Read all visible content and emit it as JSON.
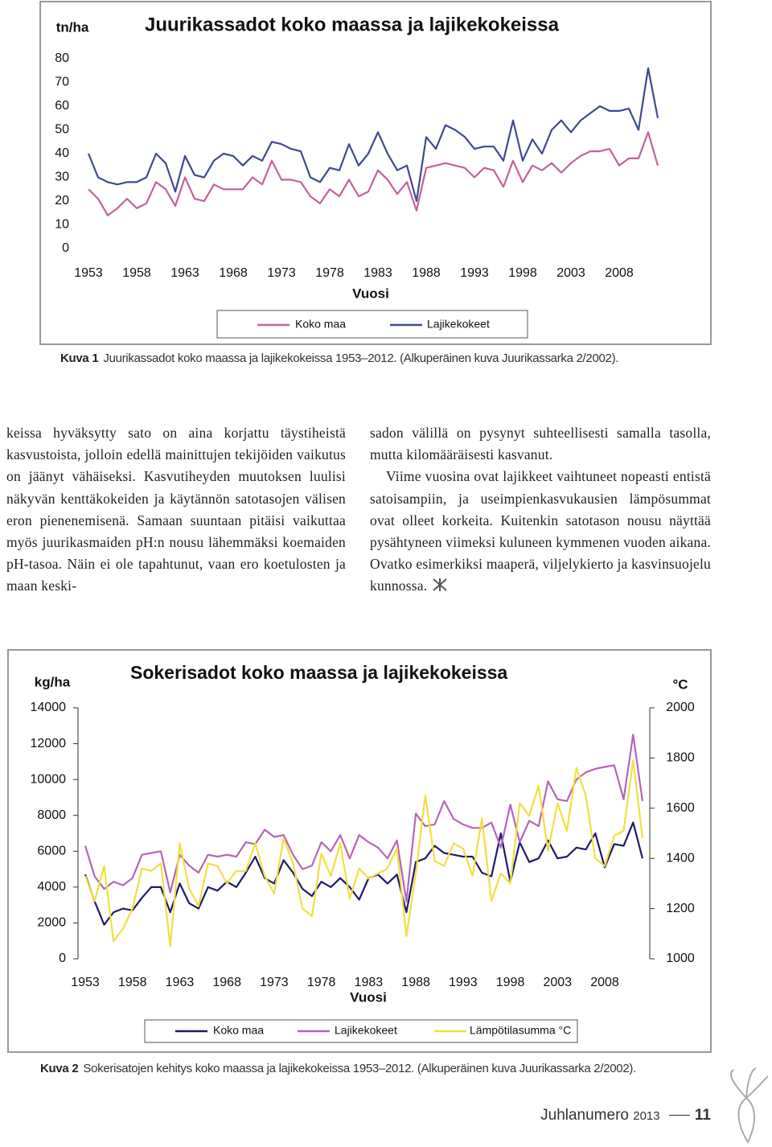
{
  "chart_data": [
    {
      "type": "line",
      "title": "Juurikassadot koko maassa ja lajikekokeissa",
      "y_label": "tn/ha",
      "x_label": "Vuosi",
      "x": [
        1953,
        1954,
        1955,
        1956,
        1957,
        1958,
        1959,
        1960,
        1961,
        1962,
        1963,
        1964,
        1965,
        1966,
        1967,
        1968,
        1969,
        1970,
        1971,
        1972,
        1973,
        1974,
        1975,
        1976,
        1977,
        1978,
        1979,
        1980,
        1981,
        1982,
        1983,
        1984,
        1985,
        1986,
        1987,
        1988,
        1989,
        1990,
        1991,
        1992,
        1993,
        1994,
        1995,
        1996,
        1997,
        1998,
        1999,
        2000,
        2001,
        2002,
        2003,
        2004,
        2005,
        2006,
        2007,
        2008,
        2009,
        2010,
        2011,
        2012
      ],
      "xlim": [
        1953,
        2012
      ],
      "xticks": [
        1953,
        1958,
        1963,
        1968,
        1973,
        1978,
        1983,
        1988,
        1993,
        1998,
        2003,
        2008
      ],
      "ylim": [
        0,
        80
      ],
      "yticks": [
        0,
        10,
        20,
        30,
        40,
        50,
        60,
        70,
        80
      ],
      "series": [
        {
          "name": "Koko maa",
          "color": "#c4619b",
          "values": [
            25,
            21,
            14,
            17,
            21,
            17,
            19,
            28,
            25,
            18,
            30,
            21,
            20,
            27,
            25,
            25,
            25,
            30,
            27,
            37,
            29,
            29,
            28,
            22,
            19,
            25,
            22,
            29,
            22,
            24,
            33,
            29,
            23,
            28,
            16,
            34,
            35,
            36,
            35,
            34,
            30,
            34,
            33,
            26,
            37,
            28,
            35,
            33,
            36,
            32,
            36,
            39,
            41,
            41,
            42,
            35,
            38,
            38,
            49,
            35
          ]
        },
        {
          "name": "Lajikekokeet",
          "color": "#3d4a92",
          "values": [
            40,
            30,
            28,
            27,
            28,
            28,
            30,
            40,
            36,
            24,
            39,
            31,
            30,
            37,
            40,
            39,
            35,
            39,
            37,
            45,
            44,
            42,
            41,
            30,
            28,
            34,
            33,
            44,
            35,
            40,
            49,
            40,
            33,
            35,
            20,
            47,
            42,
            52,
            50,
            47,
            42,
            43,
            43,
            37,
            54,
            37,
            46,
            40,
            50,
            54,
            49,
            54,
            57,
            60,
            58,
            58,
            59,
            50,
            76,
            55
          ]
        }
      ]
    },
    {
      "type": "line",
      "title": "Sokerisadot koko maassa ja lajikekokeissa",
      "y_label": "kg/ha",
      "y2_label": "°C",
      "x_label": "Vuosi",
      "x": [
        1953,
        1954,
        1955,
        1956,
        1957,
        1958,
        1959,
        1960,
        1961,
        1962,
        1963,
        1964,
        1965,
        1966,
        1967,
        1968,
        1969,
        1970,
        1971,
        1972,
        1973,
        1974,
        1975,
        1976,
        1977,
        1978,
        1979,
        1980,
        1981,
        1982,
        1983,
        1984,
        1985,
        1986,
        1987,
        1988,
        1989,
        1990,
        1991,
        1992,
        1993,
        1994,
        1995,
        1996,
        1997,
        1998,
        1999,
        2000,
        2001,
        2002,
        2003,
        2004,
        2005,
        2006,
        2007,
        2008,
        2009,
        2010,
        2011,
        2012
      ],
      "xlim": [
        1953,
        2012
      ],
      "xticks": [
        1953,
        1958,
        1963,
        1968,
        1973,
        1978,
        1983,
        1988,
        1993,
        1998,
        2003,
        2008
      ],
      "ylim": [
        0,
        14000
      ],
      "yticks": [
        0,
        2000,
        4000,
        6000,
        8000,
        10000,
        12000,
        14000
      ],
      "y2lim": [
        1000,
        2000
      ],
      "y2ticks": [
        1000,
        1200,
        1400,
        1600,
        1800,
        2000
      ],
      "series": [
        {
          "name": "Koko maa",
          "color": "#1f1a6e",
          "values": [
            4700,
            3200,
            1900,
            2600,
            2800,
            2700,
            3400,
            4000,
            4000,
            2600,
            4200,
            3100,
            2800,
            4000,
            3800,
            4300,
            4000,
            4800,
            5700,
            4500,
            4200,
            5500,
            4800,
            3900,
            3500,
            4300,
            4000,
            4500,
            4000,
            3300,
            4500,
            4700,
            4200,
            4700,
            2600,
            5400,
            5600,
            6300,
            5900,
            5800,
            5700,
            5700,
            4800,
            4600,
            7000,
            4300,
            6500,
            5400,
            5600,
            6600,
            5600,
            5700,
            6200,
            6100,
            7000,
            5100,
            6400,
            6300,
            7600,
            5600
          ]
        },
        {
          "name": "Lajikekokeet",
          "color": "#b565b8",
          "values": [
            6300,
            4600,
            3900,
            4300,
            4100,
            4500,
            5800,
            5900,
            6000,
            3700,
            5800,
            5200,
            4800,
            5800,
            5700,
            5800,
            5700,
            6500,
            6400,
            7200,
            6800,
            6900,
            5800,
            5000,
            5200,
            6500,
            6000,
            6900,
            5600,
            6900,
            6500,
            6200,
            5600,
            6600,
            3200,
            8100,
            7400,
            7500,
            8800,
            7800,
            7500,
            7300,
            7300,
            7600,
            6200,
            8600,
            6500,
            7700,
            7400,
            9900,
            8900,
            8800,
            10000,
            10400,
            10600,
            10700,
            10800,
            8900,
            12500,
            8800
          ]
        },
        {
          "name": "Lämpötilasumma °C",
          "color": "#f0e040",
          "axis": "y2",
          "values": [
            1330,
            1230,
            1370,
            1070,
            1120,
            1200,
            1360,
            1350,
            1380,
            1050,
            1460,
            1280,
            1210,
            1380,
            1370,
            1300,
            1350,
            1350,
            1460,
            1330,
            1260,
            1480,
            1380,
            1200,
            1170,
            1420,
            1330,
            1460,
            1240,
            1360,
            1320,
            1340,
            1360,
            1440,
            1090,
            1340,
            1650,
            1390,
            1370,
            1460,
            1440,
            1330,
            1560,
            1230,
            1340,
            1300,
            1620,
            1570,
            1690,
            1430,
            1620,
            1510,
            1760,
            1650,
            1400,
            1370,
            1490,
            1510,
            1790,
            1480
          ]
        }
      ]
    }
  ],
  "captions": [
    {
      "label": "Kuva 1",
      "text": "Juurikassadot koko maassa ja lajikekokeissa 1953–2012. (Alkuperäinen kuva Juurikassarka 2/2002)."
    },
    {
      "label": "Kuva 2",
      "text": "Sokerisatojen kehitys koko maassa ja lajikekokeissa 1953–2012. (Alkuperäinen kuva Juurikassarka 2/2002)."
    }
  ],
  "body": {
    "left": [
      "keissa hyväksytty sato on aina korjattu täys­tiheistä kasvustoista, jolloin edellä mainittujen tekijöiden vaikutus on jäänyt vähäiseksi. Kas­vutiheyden muutoksen luulisi näkyvän kent­täkokeiden ja käytännön satotasojen välisen eron pienenemisenä. Samaan suuntaan pitäisi vaikuttaa myös juurikasmaiden pH:n nousu lähemmäksi koemaiden pH-tasoa. Näin ei ole tapahtunut, vaan ero koetulosten ja maan keski-"
    ],
    "right": [
      "sadon välillä on pysynyt suhteellisesti samalla tasolla, mutta kilomääräisesti kasvanut.",
      "Viime vuosina ovat lajikkeet vaihtuneet no­peasti entistä satoisampiin, ja useimpienkasvu­kausien lämpösummat ovat olleet korkeita. Kui­tenkin satotason nousu näyttää pysähtyneen viimeksi kuluneen kymmenen vuoden aikana. Ovatko esimerkiksi maaperä, viljelykierto ja kasvinsuojelu kunnossa."
    ]
  },
  "footer": {
    "publication": "Juhlanumero",
    "year": "2013",
    "page": "11"
  }
}
